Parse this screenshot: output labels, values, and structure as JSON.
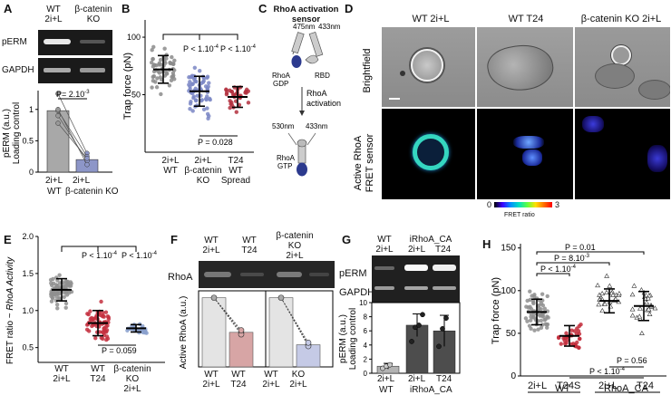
{
  "panels": {
    "A": {
      "label": "A",
      "header": [
        "WT",
        "2i+L",
        "β-catenin",
        "KO"
      ],
      "blot_rows": [
        "pERM",
        "GAPDH"
      ],
      "stat": "P= 2.10",
      "stat_exp": "-3",
      "ylabel_1": "pERM (a.u.)",
      "ylabel_2": "Loading control",
      "ticks": [
        "0",
        "0.5",
        "1"
      ],
      "x_cond": [
        "2i+L",
        "2i+L"
      ],
      "x_geno": [
        "WT",
        "β-catenin",
        "KO"
      ]
    },
    "B": {
      "label": "B",
      "ylabel": "Trap force (pN)",
      "ticks": [
        "50",
        "100"
      ],
      "stat_1": "P < 1.10",
      "stat_1_exp": "-4",
      "stat_2": "P < 1.10",
      "stat_2_exp": "-4",
      "stat_3": "P = 0.028",
      "x_labels": [
        [
          "2i+L",
          "WT"
        ],
        [
          "2i+L",
          "β-catenin",
          "KO"
        ],
        [
          "T24",
          "WT",
          "Spread"
        ]
      ]
    },
    "C": {
      "label": "C",
      "title_1": "RhoA activation",
      "title_2": "sensor",
      "wl_top_1": "475nm",
      "wl_top_2": "433nm",
      "gdp_1": "RhoA",
      "gdp_2": "GDP",
      "rbd": "RBD",
      "arrow_1": "RhoA",
      "arrow_2": "activation",
      "wl_bot_1": "530nm",
      "wl_bot_2": "433nm",
      "gtp_1": "RhoA",
      "gtp_2": "GTP"
    },
    "D": {
      "label": "D",
      "columns": [
        "WT 2i+L",
        "WT T24",
        "β-catenin KO 2i+L"
      ],
      "row_1": "Brightfield",
      "row_2a": "Active RhoA",
      "row_2b": "FRET sensor",
      "scale_min": "0",
      "scale_max": "3",
      "scale_label": "FRET ratio"
    },
    "E": {
      "label": "E",
      "ylabel_1": "FRET ratio ~ ",
      "ylabel_2": "RhoA Activity",
      "ticks": [
        "0.5",
        "1.0",
        "1.5",
        "2.0"
      ],
      "stat_1": "P < 1.10",
      "stat_1_exp": "-4",
      "stat_2": "P < 1.10",
      "stat_2_exp": "-4",
      "stat_3": "P = 0.059",
      "x_labels": [
        [
          "WT",
          "2i+L"
        ],
        [
          "WT",
          "T24"
        ],
        [
          "β-catenin",
          "KO",
          "2i+L"
        ]
      ]
    },
    "F": {
      "label": "F",
      "header": [
        [
          "WT",
          "2i+L"
        ],
        [
          "WT",
          "T24"
        ],
        [
          "β-catenin",
          "KO",
          "2i+L"
        ]
      ],
      "blot_row": "RhoA",
      "ylabel": "Active RhoA (a.u.)",
      "x_labels": [
        [
          "WT",
          "2i+L"
        ],
        [
          "WT",
          "T24"
        ],
        [
          "WT",
          "2i+L"
        ],
        [
          "KO",
          "2i+L"
        ]
      ]
    },
    "G": {
      "label": "G",
      "header_1": [
        "WT",
        "2i+L"
      ],
      "header_2": "iRhoA_CA",
      "header_3": [
        "2i+L",
        "T24"
      ],
      "blot_rows": [
        "pERM",
        "GAPDH"
      ],
      "ticks": [
        "0",
        "2",
        "4",
        "6",
        "8",
        "10"
      ],
      "ylabel_1": "pERM (a.u.)",
      "ylabel_2": "Loading control",
      "x_cond": [
        "2i+L",
        "2i+L",
        "T24"
      ],
      "x_geno": [
        "WT",
        "iRhoA_CA"
      ]
    },
    "H": {
      "label": "H",
      "ylabel": "Trap force (pN)",
      "ticks": [
        "0",
        "50",
        "100",
        "150"
      ],
      "stat_1": "P = 0.01",
      "stat_2": "P = 8.10",
      "stat_2_exp": "-3",
      "stat_3": "P < 1.10",
      "stat_3_exp": "-4",
      "stat_4": "P = 0.56",
      "stat_5": "P < 1.10",
      "stat_5_exp": "-4",
      "x_cond": [
        "2i+L",
        "T24S",
        "2i+L",
        "T24"
      ],
      "x_geno": [
        "WT",
        "RhoA_CA"
      ]
    }
  },
  "chart_data": [
    {
      "type": "bar",
      "panel": "A",
      "categories": [
        "WT 2i+L",
        "β-catenin KO 2i+L"
      ],
      "values": [
        0.98,
        0.2
      ],
      "ylim": [
        0,
        1.3
      ],
      "paired_points": [
        [
          1.25,
          0.3
        ],
        [
          0.98,
          0.25
        ],
        [
          0.9,
          0.18
        ],
        [
          1.0,
          0.12
        ],
        [
          0.78,
          0.22
        ]
      ]
    },
    {
      "type": "scatter",
      "panel": "B",
      "categories": [
        "2i+L WT",
        "2i+L β-catenin KO",
        "T24 WT Spread"
      ],
      "means": [
        72,
        53,
        48
      ],
      "sd": [
        12,
        13,
        9
      ],
      "n": [
        60,
        65,
        35
      ],
      "ylim": [
        0,
        115
      ]
    },
    {
      "type": "scatter",
      "panel": "E",
      "categories": [
        "WT 2i+L",
        "WT T24",
        "β-catenin KO 2i+L"
      ],
      "means": [
        1.28,
        0.83,
        0.76
      ],
      "sd": [
        0.15,
        0.17,
        0.05
      ],
      "n": [
        75,
        70,
        28
      ],
      "ylim": [
        0.3,
        2.0
      ]
    },
    {
      "type": "bar",
      "panel": "F",
      "categories": [
        "WT 2i+L",
        "WT T24",
        "WT 2i+L",
        "KO 2i+L"
      ],
      "values": [
        1.0,
        0.5,
        1.0,
        0.32
      ],
      "ylim": [
        0,
        1.1
      ]
    },
    {
      "type": "bar",
      "panel": "G",
      "categories": [
        "WT 2i+L",
        "iRhoA_CA 2i+L",
        "iRhoA_CA T24"
      ],
      "values": [
        1.0,
        6.8,
        6.0
      ],
      "errors": [
        0.4,
        1.6,
        2.2
      ],
      "ylim": [
        0,
        10
      ]
    },
    {
      "type": "scatter",
      "panel": "H",
      "categories": [
        "WT 2i+L",
        "WT T24S",
        "RhoA_CA 2i+L",
        "RhoA_CA T24"
      ],
      "means": [
        75,
        47,
        88,
        82
      ],
      "sd": [
        15,
        12,
        14,
        17
      ],
      "n": [
        70,
        35,
        25,
        25
      ],
      "ylim": [
        0,
        155
      ]
    }
  ]
}
